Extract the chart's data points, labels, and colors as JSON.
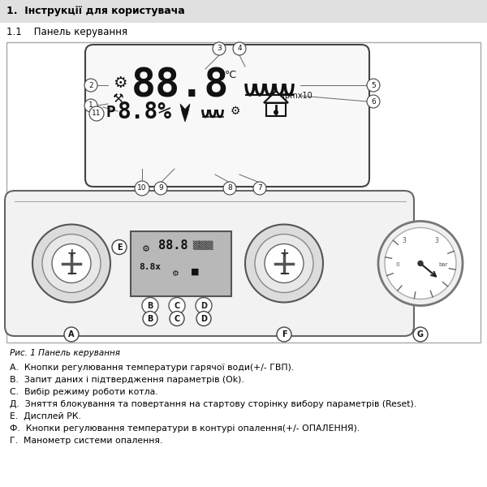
{
  "title1": "1.  Інструкції для користувача",
  "title2": "1.1    Панель керування",
  "caption": "Рис. 1 Панель керування",
  "legend_A": "А.  Кнопки регулювання температури гарячої води",
  "legend_A_bold": "(+/- ГВП)",
  "legend_A_end": ".",
  "legend_B": "В.  Запит даних і підтвердження параметрів ",
  "legend_B_bold": "(Ok)",
  "legend_B_end": ".",
  "legend_C": "С.  Вибір режиму роботи котла.",
  "legend_D": "Д.  Зняття блокування та повертання на стартову сторінку вибору параметрів ",
  "legend_D_bold": "(Reset)",
  "legend_D_end": ".",
  "legend_E": "Е.  Дисплей РК.",
  "legend_F": "Ф.  Кнопки регулювання температури в контурі опалення",
  "legend_F_bold": "(+/- ОПАЛЕННЯ)",
  "legend_F_end": ".",
  "legend_G": "Г.  Манометр системи опалення.",
  "bg_header": "#e0e0e0",
  "bg_white": "#ffffff",
  "text_color": "#000000",
  "border_color": "#888888"
}
